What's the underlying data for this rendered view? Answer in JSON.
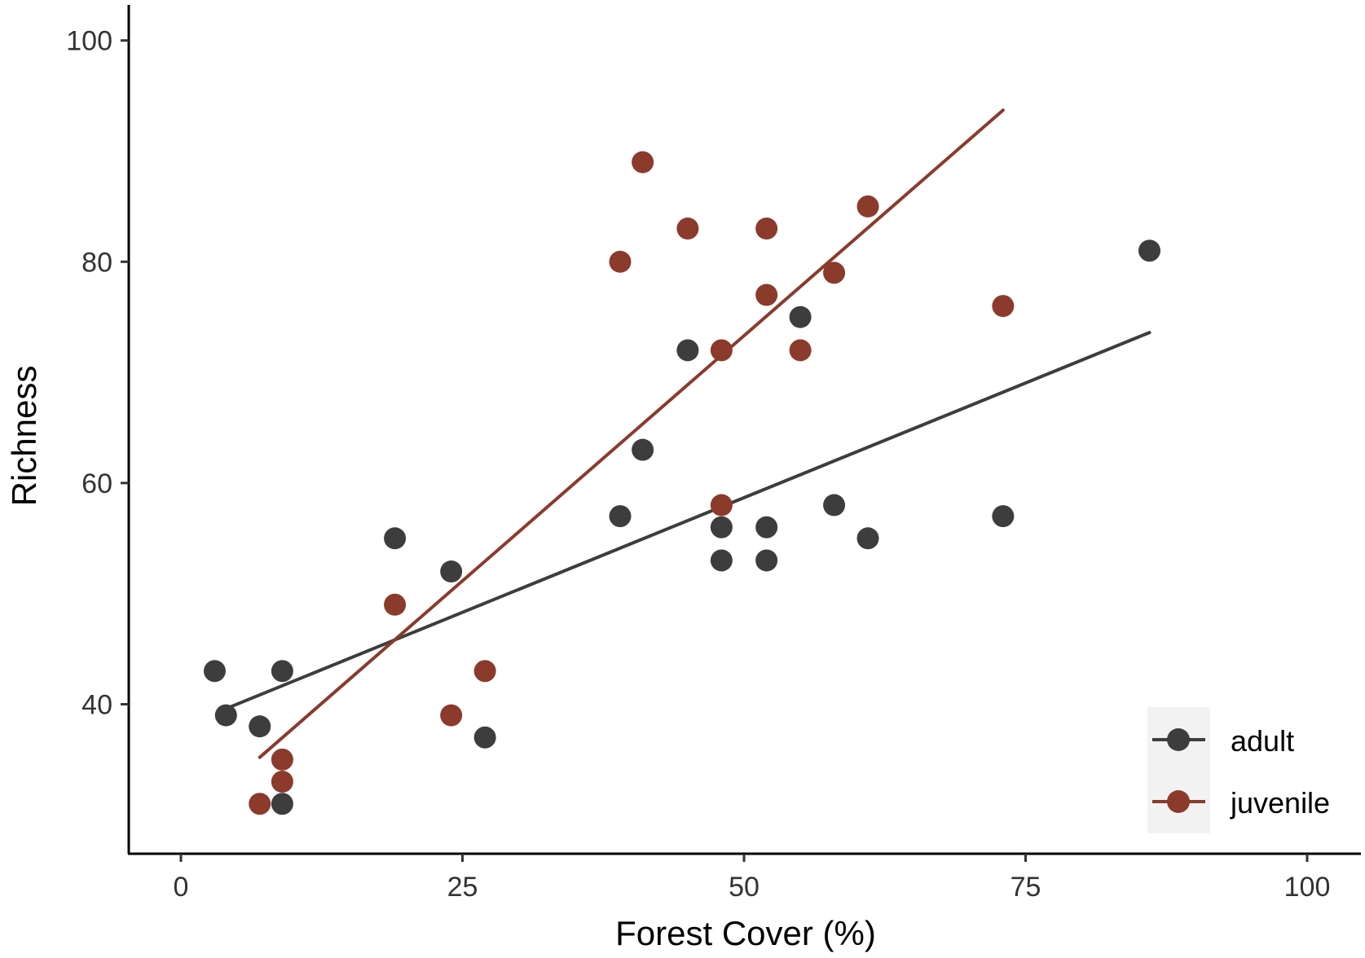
{
  "chart_data": {
    "type": "scatter",
    "title": "",
    "xlabel": "Forest Cover (%)",
    "ylabel": "Richness",
    "xlim": [
      -5,
      105
    ],
    "ylim": [
      26,
      102
    ],
    "x_ticks": [
      0,
      25,
      50,
      75,
      100
    ],
    "y_ticks": [
      40,
      60,
      80,
      100
    ],
    "grid": false,
    "legend_position": "bottom-right",
    "series": [
      {
        "name": "adult",
        "color": "#3d3d3d",
        "points": [
          {
            "x": 3,
            "y": 43
          },
          {
            "x": 4,
            "y": 39
          },
          {
            "x": 7,
            "y": 38
          },
          {
            "x": 9,
            "y": 43
          },
          {
            "x": 9,
            "y": 31
          },
          {
            "x": 19,
            "y": 55
          },
          {
            "x": 24,
            "y": 52
          },
          {
            "x": 27,
            "y": 37
          },
          {
            "x": 39,
            "y": 57
          },
          {
            "x": 41,
            "y": 63
          },
          {
            "x": 45,
            "y": 72
          },
          {
            "x": 48,
            "y": 56
          },
          {
            "x": 48,
            "y": 53
          },
          {
            "x": 52,
            "y": 56
          },
          {
            "x": 52,
            "y": 53
          },
          {
            "x": 55,
            "y": 75
          },
          {
            "x": 58,
            "y": 58
          },
          {
            "x": 61,
            "y": 55
          },
          {
            "x": 73,
            "y": 57
          },
          {
            "x": 86,
            "y": 81
          }
        ],
        "trend": {
          "x": [
            4,
            86
          ],
          "y": [
            39.6,
            73.6
          ]
        }
      },
      {
        "name": "juvenile",
        "color": "#8b3a2b",
        "points": [
          {
            "x": 7,
            "y": 31
          },
          {
            "x": 9,
            "y": 35
          },
          {
            "x": 9,
            "y": 33
          },
          {
            "x": 19,
            "y": 49
          },
          {
            "x": 24,
            "y": 39
          },
          {
            "x": 27,
            "y": 43
          },
          {
            "x": 39,
            "y": 80
          },
          {
            "x": 41,
            "y": 89
          },
          {
            "x": 45,
            "y": 83
          },
          {
            "x": 48,
            "y": 72
          },
          {
            "x": 48,
            "y": 58
          },
          {
            "x": 52,
            "y": 83
          },
          {
            "x": 52,
            "y": 77
          },
          {
            "x": 55,
            "y": 72
          },
          {
            "x": 58,
            "y": 79
          },
          {
            "x": 61,
            "y": 85
          },
          {
            "x": 73,
            "y": 76
          }
        ],
        "trend": {
          "x": [
            7,
            73
          ],
          "y": [
            35.2,
            93.7
          ]
        }
      }
    ]
  }
}
